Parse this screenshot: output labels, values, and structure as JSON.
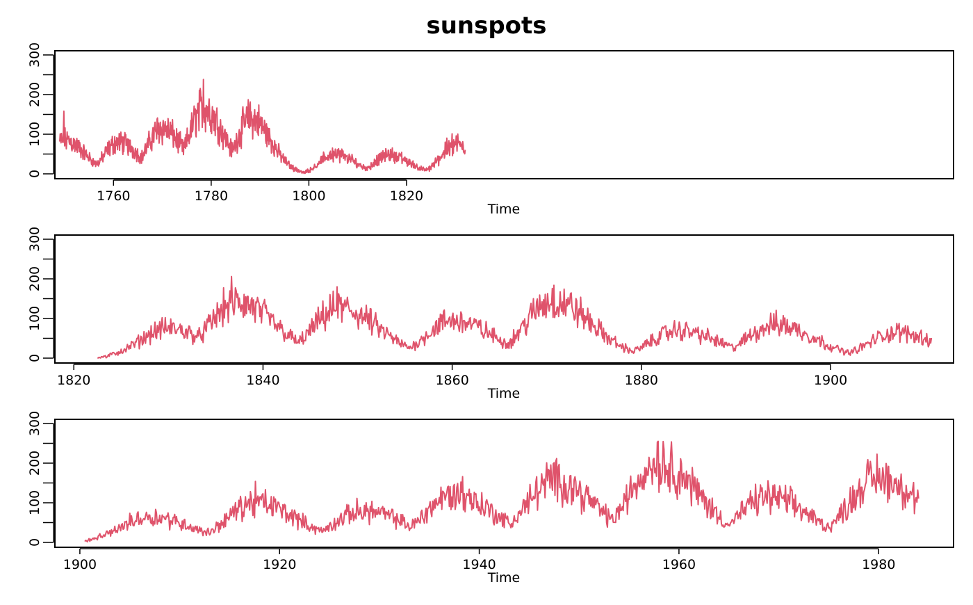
{
  "chart_data": {
    "type": "line",
    "title": "sunspots",
    "series_color": "#df536b",
    "panels": [
      {
        "xlabel": "Time",
        "xlim": [
          1748,
          1932
        ],
        "ylim": [
          0,
          300
        ],
        "xticks": [
          1760,
          1780,
          1800,
          1820
        ],
        "yticks": [
          0,
          100,
          200,
          300
        ],
        "start": 1749,
        "end": 1832,
        "peaks": [
          [
            1750,
            85
          ],
          [
            1761,
            80
          ],
          [
            1769.8,
            115
          ],
          [
            1778.4,
            165
          ],
          [
            1788.1,
            140
          ],
          [
            1805.2,
            50
          ],
          [
            1816.4,
            48
          ],
          [
            1829.9,
            75
          ]
        ],
        "max_points": [
          [
            1749.8,
            158
          ],
          [
            1778.4,
            238
          ],
          [
            1787.9,
            175
          ]
        ]
      },
      {
        "xlabel": "Time",
        "xlim": [
          1818,
          1913
        ],
        "ylim": [
          0,
          300
        ],
        "xticks": [
          1820,
          1840,
          1860,
          1880,
          1900
        ],
        "yticks": [
          0,
          100,
          200,
          300
        ],
        "start": 1822.5,
        "end": 1910.7,
        "peaks": [
          [
            1829.9,
            75
          ],
          [
            1837.2,
            140
          ],
          [
            1848.1,
            125
          ],
          [
            1860.1,
            95
          ],
          [
            1870.6,
            145
          ],
          [
            1883.9,
            70
          ],
          [
            1894.1,
            85
          ],
          [
            1907,
            65
          ]
        ],
        "max_points": [
          [
            1836.7,
            206
          ],
          [
            1847.8,
            180
          ],
          [
            1870.6,
            176
          ]
        ]
      },
      {
        "xlabel": "Time",
        "xlim": [
          1897.5,
          1987.5
        ],
        "ylim": [
          0,
          300
        ],
        "xticks": [
          1900,
          1920,
          1940,
          1960,
          1980
        ],
        "yticks": [
          0,
          100,
          200,
          300
        ],
        "start": 1900.5,
        "end": 1984,
        "peaks": [
          [
            1907,
            65
          ],
          [
            1917.6,
            100
          ],
          [
            1928.4,
            80
          ],
          [
            1937.4,
            120
          ],
          [
            1947.5,
            155
          ],
          [
            1957.9,
            200
          ],
          [
            1968.9,
            115
          ],
          [
            1979.9,
            165
          ]
        ],
        "max_points": [
          [
            1917.6,
            154
          ],
          [
            1938.3,
            166
          ],
          [
            1947.5,
            201
          ],
          [
            1957.8,
            253
          ]
        ]
      }
    ]
  }
}
